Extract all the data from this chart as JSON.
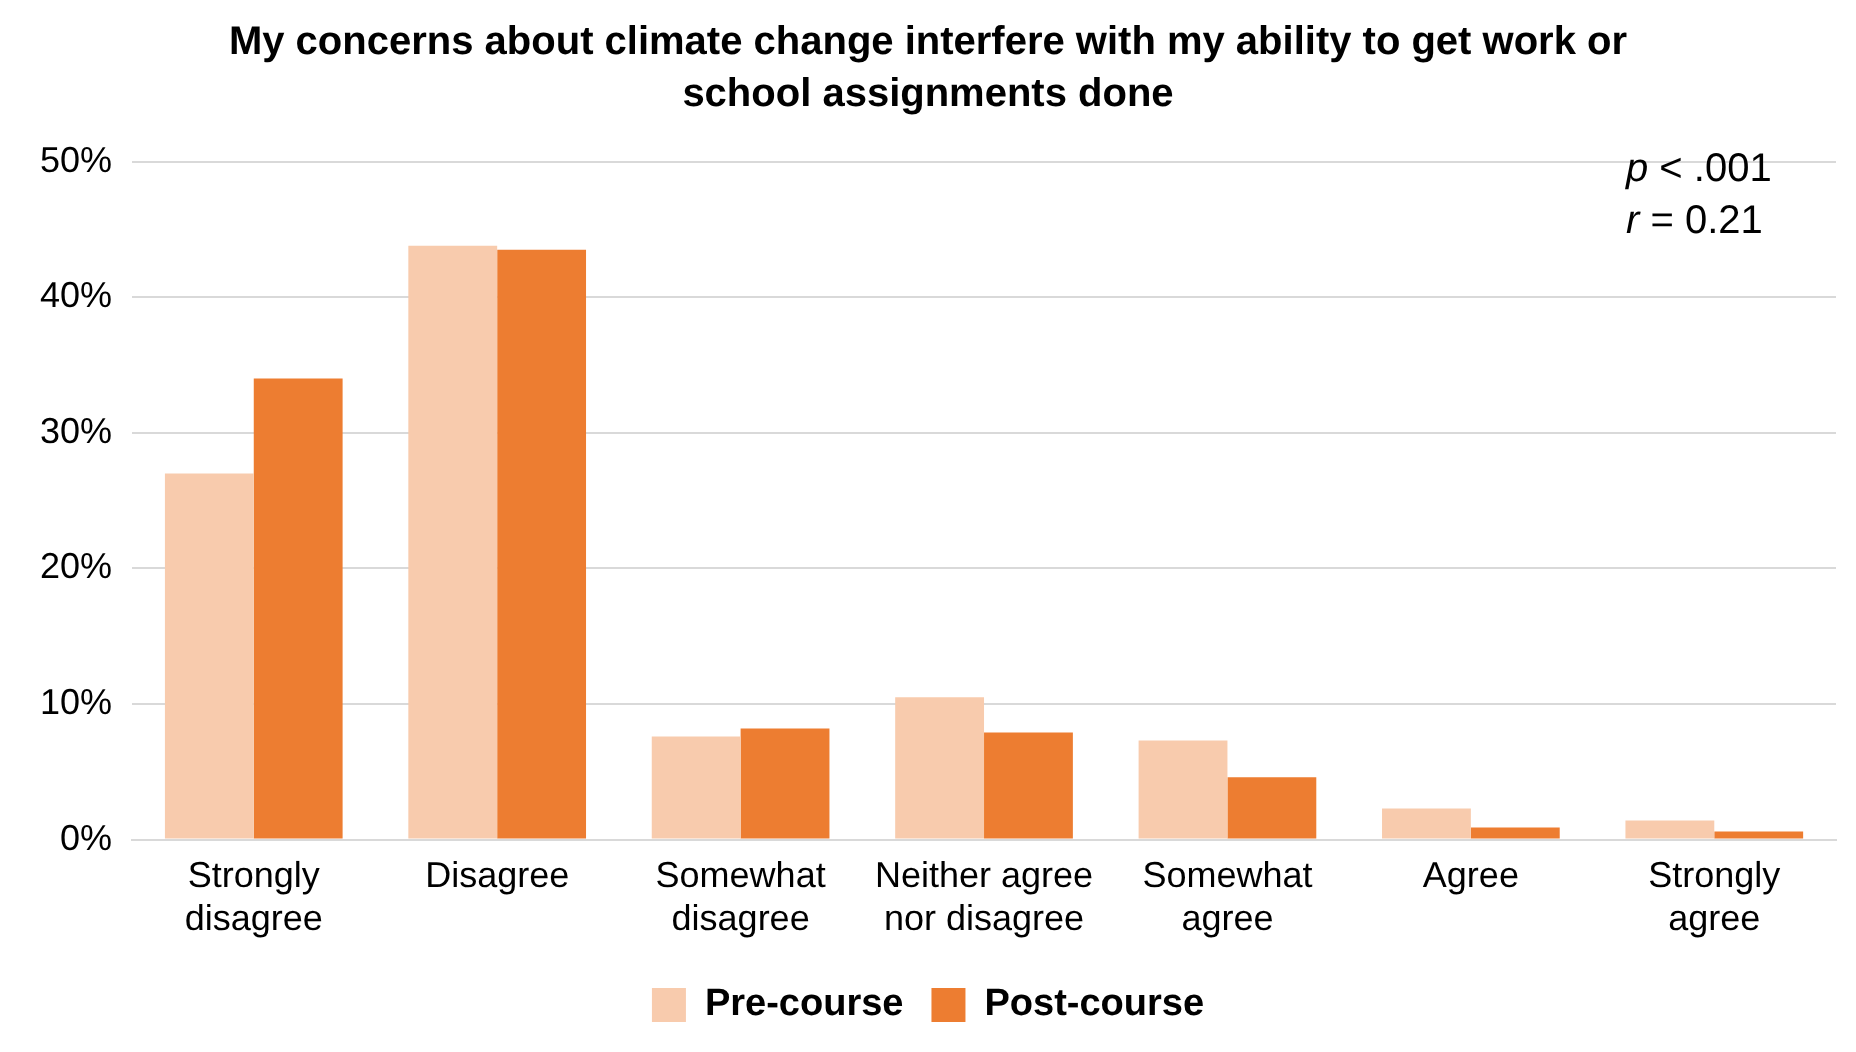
{
  "chart_data": {
    "type": "bar",
    "title": "My concerns about climate change interfere with my ability to get work or school assignments done",
    "categories": [
      "Strongly disagree",
      "Disagree",
      "Somewhat disagree",
      "Neither agree nor disagree",
      "Somewhat agree",
      "Agree",
      "Strongly agree"
    ],
    "series": [
      {
        "name": "Pre-course",
        "color": "#f8cbad",
        "values": [
          27.0,
          43.8,
          7.6,
          10.5,
          7.3,
          2.3,
          1.4
        ]
      },
      {
        "name": "Post-course",
        "color": "#ed7d31",
        "values": [
          34.0,
          43.5,
          8.2,
          7.9,
          4.6,
          0.9,
          0.6
        ]
      }
    ],
    "ylim": [
      0,
      50
    ],
    "yticks": [
      {
        "value": 0,
        "label": "0%"
      },
      {
        "value": 10,
        "label": "10%"
      },
      {
        "value": 20,
        "label": "20%"
      },
      {
        "value": 30,
        "label": "30%"
      },
      {
        "value": 40,
        "label": "40%"
      },
      {
        "value": 50,
        "label": "50%"
      }
    ],
    "grid": "y",
    "legend": "bottom",
    "annotations": [
      "p < .001",
      "r = 0.21"
    ]
  }
}
